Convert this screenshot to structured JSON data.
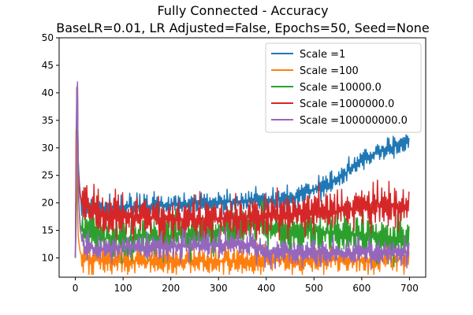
{
  "chart_data": {
    "type": "line",
    "title": "Fully Connected - Accuracy",
    "subtitle": "BaseLR=0.01, LR Adjusted=False, Epochs=50, Seed=None",
    "xlabel": "",
    "ylabel": "",
    "xlim": [
      -34,
      734
    ],
    "ylim": [
      6.5,
      50
    ],
    "xticks": [
      0,
      100,
      200,
      300,
      400,
      500,
      600,
      700
    ],
    "yticks": [
      10,
      15,
      20,
      25,
      30,
      35,
      40,
      45,
      50
    ],
    "grid": false,
    "legend_position": "top-right",
    "series": [
      {
        "name": "Scale =1",
        "color": "#1f77b4",
        "x": [
          0,
          2,
          4,
          6,
          8,
          12,
          20,
          40,
          60,
          100,
          150,
          200,
          250,
          300,
          350,
          400,
          430,
          450,
          470,
          490,
          510,
          530,
          550,
          570,
          590,
          610,
          630,
          650,
          670,
          690,
          700
        ],
        "values": [
          10,
          18,
          42,
          28,
          24,
          20,
          19,
          19,
          19,
          19.3,
          19.5,
          19.7,
          19.9,
          20.1,
          20.3,
          20.5,
          20.6,
          20.8,
          21.5,
          22.2,
          22.6,
          23.4,
          24.2,
          25.8,
          27.3,
          28.4,
          29.0,
          29.6,
          30.3,
          30.8,
          31.0
        ]
      },
      {
        "name": "Scale =100",
        "color": "#ff7f0e",
        "x": [
          0,
          2,
          4,
          6,
          10,
          20,
          50,
          100,
          200,
          300,
          400,
          500,
          600,
          700
        ],
        "values": [
          10,
          41,
          22,
          14,
          11,
          10,
          9.5,
          9.5,
          9.4,
          9.5,
          9.6,
          9.7,
          9.7,
          9.8
        ]
      },
      {
        "name": "Scale =10000.0",
        "color": "#2ca02c",
        "x": [
          0,
          2,
          4,
          6,
          10,
          20,
          50,
          100,
          200,
          300,
          350,
          380,
          400,
          450,
          500,
          550,
          600,
          650,
          700
        ],
        "values": [
          10,
          30,
          45,
          22,
          16,
          14,
          13.5,
          13.5,
          14,
          15,
          15.5,
          16,
          15.5,
          15,
          15,
          14.5,
          14,
          13.5,
          13.5
        ]
      },
      {
        "name": "Scale =1000000.0",
        "color": "#d62728",
        "x": [
          0,
          2,
          4,
          6,
          10,
          20,
          50,
          100,
          200,
          300,
          400,
          450,
          500,
          550,
          600,
          650,
          700
        ],
        "values": [
          10,
          36,
          46,
          26,
          21,
          20,
          18,
          17.5,
          17,
          17,
          17.5,
          18,
          18.5,
          18.5,
          19,
          19.5,
          19.5
        ]
      },
      {
        "name": "Scale =100000000.0",
        "color": "#9467bd",
        "x": [
          0,
          2,
          4,
          6,
          10,
          20,
          50,
          100,
          200,
          300,
          370,
          400,
          500,
          600,
          700
        ],
        "values": [
          10,
          30,
          48,
          24,
          15,
          12,
          11.5,
          12,
          12,
          12.5,
          12.5,
          11,
          11,
          11,
          11
        ]
      }
    ]
  }
}
